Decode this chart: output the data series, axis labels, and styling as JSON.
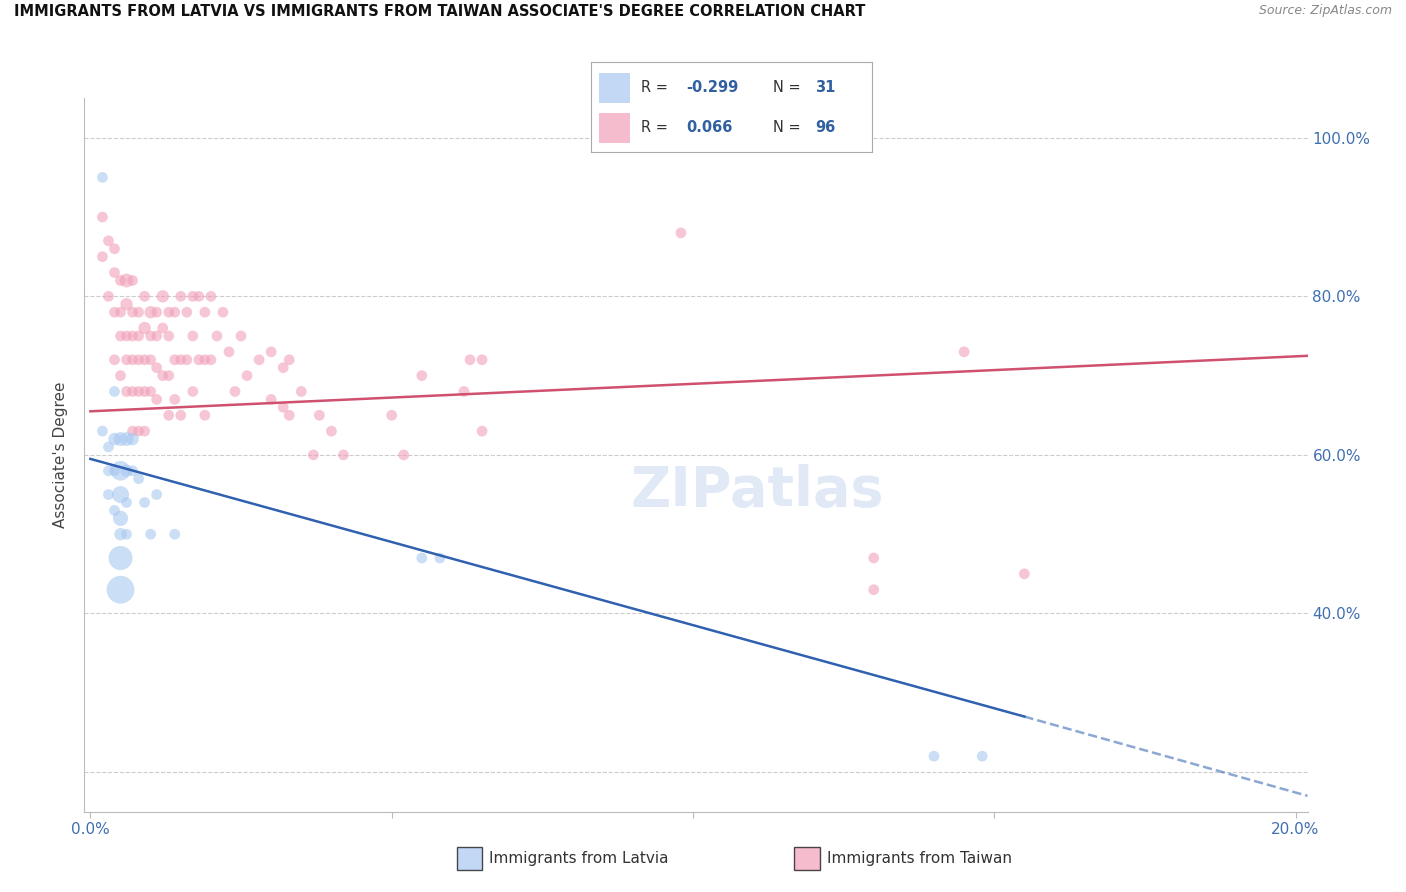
{
  "title": "IMMIGRANTS FROM LATVIA VS IMMIGRANTS FROM TAIWAN ASSOCIATE'S DEGREE CORRELATION CHART",
  "source": "Source: ZipAtlas.com",
  "ylabel": "Associate's Degree",
  "background_color": "#ffffff",
  "watermark": "ZIPatlas",
  "latvia_R": -0.299,
  "latvia_N": 31,
  "taiwan_R": 0.066,
  "taiwan_N": 96,
  "latvia_color": "#a8c8f0",
  "taiwan_color": "#f0a0b8",
  "latvia_line_color": "#3060b0",
  "taiwan_line_color": "#d05070",
  "xlim": [
    -0.001,
    0.202
  ],
  "ylim": [
    0.15,
    1.05
  ],
  "latvia_x": [
    0.002,
    0.002,
    0.003,
    0.003,
    0.003,
    0.004,
    0.004,
    0.004,
    0.004,
    0.005,
    0.005,
    0.005,
    0.005,
    0.005,
    0.005,
    0.005,
    0.006,
    0.006,
    0.006,
    0.006,
    0.007,
    0.007,
    0.008,
    0.009,
    0.01,
    0.011,
    0.014,
    0.055,
    0.058,
    0.14,
    0.148
  ],
  "latvia_y": [
    0.95,
    0.63,
    0.61,
    0.58,
    0.55,
    0.68,
    0.62,
    0.58,
    0.53,
    0.62,
    0.58,
    0.55,
    0.52,
    0.5,
    0.47,
    0.43,
    0.62,
    0.58,
    0.54,
    0.5,
    0.62,
    0.58,
    0.57,
    0.54,
    0.5,
    0.55,
    0.5,
    0.47,
    0.47,
    0.22,
    0.22
  ],
  "latvia_size": [
    60,
    60,
    60,
    60,
    60,
    60,
    80,
    60,
    60,
    100,
    200,
    150,
    120,
    80,
    300,
    400,
    100,
    80,
    60,
    60,
    80,
    60,
    60,
    60,
    60,
    60,
    60,
    60,
    60,
    60,
    60
  ],
  "taiwan_x": [
    0.002,
    0.002,
    0.003,
    0.003,
    0.004,
    0.004,
    0.004,
    0.004,
    0.005,
    0.005,
    0.005,
    0.005,
    0.006,
    0.006,
    0.006,
    0.006,
    0.006,
    0.007,
    0.007,
    0.007,
    0.007,
    0.007,
    0.007,
    0.008,
    0.008,
    0.008,
    0.008,
    0.008,
    0.009,
    0.009,
    0.009,
    0.009,
    0.009,
    0.01,
    0.01,
    0.01,
    0.01,
    0.011,
    0.011,
    0.011,
    0.011,
    0.012,
    0.012,
    0.012,
    0.013,
    0.013,
    0.013,
    0.013,
    0.014,
    0.014,
    0.014,
    0.015,
    0.015,
    0.015,
    0.016,
    0.016,
    0.017,
    0.017,
    0.017,
    0.018,
    0.018,
    0.019,
    0.019,
    0.019,
    0.02,
    0.02,
    0.021,
    0.022,
    0.023,
    0.024,
    0.025,
    0.026,
    0.028,
    0.03,
    0.03,
    0.032,
    0.032,
    0.033,
    0.033,
    0.035,
    0.037,
    0.038,
    0.04,
    0.042,
    0.05,
    0.052,
    0.055,
    0.062,
    0.063,
    0.065,
    0.065,
    0.098,
    0.13,
    0.13,
    0.145,
    0.155
  ],
  "taiwan_y": [
    0.9,
    0.85,
    0.87,
    0.8,
    0.86,
    0.83,
    0.78,
    0.72,
    0.82,
    0.78,
    0.75,
    0.7,
    0.82,
    0.79,
    0.75,
    0.72,
    0.68,
    0.82,
    0.78,
    0.75,
    0.72,
    0.68,
    0.63,
    0.78,
    0.75,
    0.72,
    0.68,
    0.63,
    0.8,
    0.76,
    0.72,
    0.68,
    0.63,
    0.78,
    0.75,
    0.72,
    0.68,
    0.78,
    0.75,
    0.71,
    0.67,
    0.8,
    0.76,
    0.7,
    0.78,
    0.75,
    0.7,
    0.65,
    0.78,
    0.72,
    0.67,
    0.8,
    0.72,
    0.65,
    0.78,
    0.72,
    0.8,
    0.75,
    0.68,
    0.8,
    0.72,
    0.78,
    0.72,
    0.65,
    0.8,
    0.72,
    0.75,
    0.78,
    0.73,
    0.68,
    0.75,
    0.7,
    0.72,
    0.73,
    0.67,
    0.71,
    0.66,
    0.72,
    0.65,
    0.68,
    0.6,
    0.65,
    0.63,
    0.6,
    0.65,
    0.6,
    0.7,
    0.68,
    0.72,
    0.72,
    0.63,
    0.88,
    0.47,
    0.43,
    0.73,
    0.45
  ],
  "taiwan_size": [
    60,
    60,
    60,
    60,
    60,
    60,
    60,
    60,
    60,
    60,
    60,
    60,
    100,
    80,
    60,
    60,
    60,
    60,
    60,
    60,
    60,
    60,
    60,
    60,
    60,
    60,
    60,
    60,
    60,
    80,
    60,
    60,
    60,
    80,
    60,
    60,
    60,
    60,
    60,
    60,
    60,
    80,
    60,
    60,
    60,
    60,
    60,
    60,
    60,
    60,
    60,
    60,
    60,
    60,
    60,
    60,
    60,
    60,
    60,
    60,
    60,
    60,
    60,
    60,
    60,
    60,
    60,
    60,
    60,
    60,
    60,
    60,
    60,
    60,
    60,
    60,
    60,
    60,
    60,
    60,
    60,
    60,
    60,
    60,
    60,
    60,
    60,
    60,
    60,
    60,
    60,
    60,
    60,
    60,
    60,
    60
  ],
  "latvia_line_x0": 0.0,
  "latvia_line_y0": 0.595,
  "latvia_line_x1": 0.155,
  "latvia_line_y1": 0.27,
  "latvia_line_dash_x1": 0.202,
  "latvia_line_dash_y1": 0.17,
  "taiwan_line_x0": 0.0,
  "taiwan_line_y0": 0.655,
  "taiwan_line_x1": 0.202,
  "taiwan_line_y1": 0.725
}
